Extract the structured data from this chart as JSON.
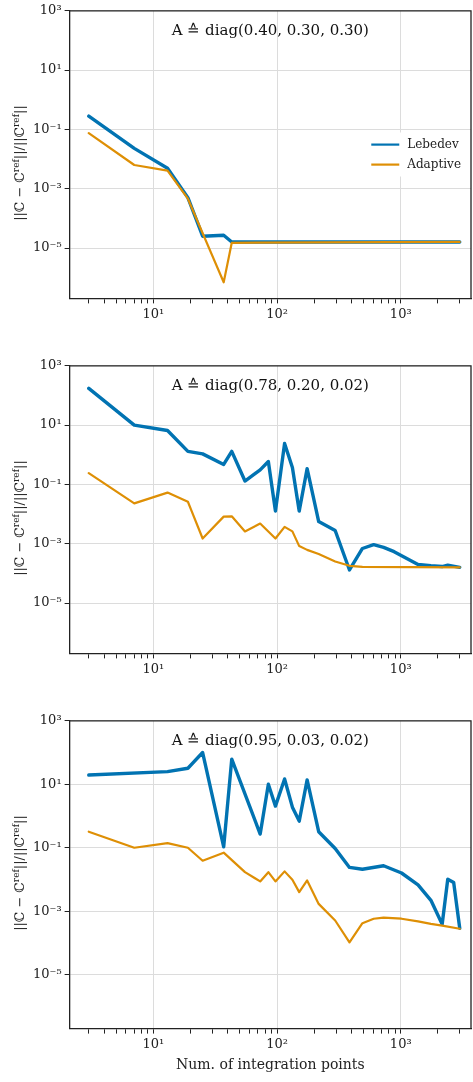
{
  "chart_data": [
    {
      "type": "line",
      "title": "A ≙ diag(0.40, 0.30, 0.30)",
      "ylabel": "||ℂ − ℂ$^{ref}$||/||ℂ$^{ref}$||",
      "log": "xy",
      "grid": true,
      "legend": "right",
      "xlim": [
        2.1,
        3700
      ],
      "ylim": [
        2e-07,
        1000
      ],
      "xticks": [
        {
          "value": 3,
          "label": null
        },
        {
          "value": 4,
          "label": null
        },
        {
          "value": 5,
          "label": null
        },
        {
          "value": 6,
          "label": null
        },
        {
          "value": 7,
          "label": null
        },
        {
          "value": 8,
          "label": null
        },
        {
          "value": 9,
          "label": null
        },
        {
          "value": 10,
          "label": "10¹"
        },
        {
          "value": 20,
          "label": null
        },
        {
          "value": 30,
          "label": null
        },
        {
          "value": 40,
          "label": null
        },
        {
          "value": 50,
          "label": null
        },
        {
          "value": 60,
          "label": null
        },
        {
          "value": 70,
          "label": null
        },
        {
          "value": 80,
          "label": null
        },
        {
          "value": 90,
          "label": null
        },
        {
          "value": 100,
          "label": "10²"
        },
        {
          "value": 200,
          "label": null
        },
        {
          "value": 300,
          "label": null
        },
        {
          "value": 400,
          "label": null
        },
        {
          "value": 500,
          "label": null
        },
        {
          "value": 600,
          "label": null
        },
        {
          "value": 700,
          "label": null
        },
        {
          "value": 800,
          "label": null
        },
        {
          "value": 900,
          "label": null
        },
        {
          "value": 1000,
          "label": "10³"
        },
        {
          "value": 2000,
          "label": null
        },
        {
          "value": 3000,
          "label": null
        }
      ],
      "yticks": [
        {
          "value": 1e-05,
          "label": "10⁻⁵"
        },
        {
          "value": 0.001,
          "label": "10⁻³"
        },
        {
          "value": 0.1,
          "label": "10⁻¹"
        },
        {
          "value": 10,
          "label": "10¹"
        },
        {
          "value": 1000,
          "label": "10³"
        }
      ],
      "series": [
        {
          "name": "Lebedev",
          "color": "#0173b2",
          "x": [
            3,
            7,
            13,
            19,
            25,
            37,
            43,
            3000
          ],
          "values": [
            0.28,
            0.023,
            0.0049,
            0.0005,
            2.5e-05,
            2.7e-05,
            1.6e-05,
            1.6e-05
          ]
        },
        {
          "name": "Adaptive",
          "color": "#de8f05",
          "x": [
            3,
            7,
            13,
            19,
            37,
            43,
            3000
          ],
          "values": [
            0.075,
            0.0063,
            0.0041,
            0.00046,
            7e-07,
            1.5e-05,
            1.6e-05
          ]
        }
      ]
    },
    {
      "type": "line",
      "title": "A ≙ diag(0.78, 0.20, 0.02)",
      "ylabel": "||ℂ − ℂ$^{ref}$||/||ℂ$^{ref}$||",
      "log": "xy",
      "grid": true,
      "xlim": [
        2.1,
        3700
      ],
      "ylim": [
        2e-07,
        1000
      ],
      "xticks": [
        {
          "value": 3,
          "label": null
        },
        {
          "value": 4,
          "label": null
        },
        {
          "value": 5,
          "label": null
        },
        {
          "value": 6,
          "label": null
        },
        {
          "value": 7,
          "label": null
        },
        {
          "value": 8,
          "label": null
        },
        {
          "value": 9,
          "label": null
        },
        {
          "value": 10,
          "label": "10¹"
        },
        {
          "value": 20,
          "label": null
        },
        {
          "value": 30,
          "label": null
        },
        {
          "value": 40,
          "label": null
        },
        {
          "value": 50,
          "label": null
        },
        {
          "value": 60,
          "label": null
        },
        {
          "value": 70,
          "label": null
        },
        {
          "value": 80,
          "label": null
        },
        {
          "value": 90,
          "label": null
        },
        {
          "value": 100,
          "label": "10²"
        },
        {
          "value": 200,
          "label": null
        },
        {
          "value": 300,
          "label": null
        },
        {
          "value": 400,
          "label": null
        },
        {
          "value": 500,
          "label": null
        },
        {
          "value": 600,
          "label": null
        },
        {
          "value": 700,
          "label": null
        },
        {
          "value": 800,
          "label": null
        },
        {
          "value": 900,
          "label": null
        },
        {
          "value": 1000,
          "label": "10³"
        },
        {
          "value": 2000,
          "label": null
        },
        {
          "value": 3000,
          "label": null
        }
      ],
      "yticks": [
        {
          "value": 1e-05,
          "label": "10⁻⁵"
        },
        {
          "value": 0.001,
          "label": "10⁻³"
        },
        {
          "value": 0.1,
          "label": "10⁻¹"
        },
        {
          "value": 10,
          "label": "10¹"
        },
        {
          "value": 1000,
          "label": "10³"
        }
      ],
      "series": [
        {
          "color": "#0173b2",
          "x": [
            3,
            7,
            13,
            19,
            25,
            37,
            43,
            55,
            73,
            85,
            97,
            115,
            133,
            151,
            175,
            217,
            295,
            385,
            490,
            604,
            727,
            884,
            1380,
            1754,
            2163,
            2400,
            3000
          ],
          "values": [
            174,
            10,
            6.6,
            1.3,
            1.07,
            0.47,
            1.3,
            0.13,
            0.31,
            0.59,
            0.0126,
            2.4,
            0.37,
            0.0126,
            0.34,
            0.0056,
            0.0028,
            0.00013,
            0.00069,
            0.00093,
            0.00075,
            0.00054,
            0.0002,
            0.00018,
            0.00017,
            0.00019,
            0.00016
          ]
        },
        {
          "color": "#de8f05",
          "x": [
            3,
            7,
            13,
            19,
            25,
            37,
            43,
            55,
            73,
            97,
            115,
            133,
            151,
            175,
            217,
            295,
            385,
            490,
            3000
          ],
          "values": [
            0.24,
            0.023,
            0.053,
            0.026,
            0.0015,
            0.0082,
            0.0084,
            0.0026,
            0.0048,
            0.0015,
            0.0037,
            0.0026,
            0.00083,
            0.00062,
            0.00045,
            0.00025,
            0.00018,
            0.000165,
            0.00016
          ]
        }
      ]
    },
    {
      "type": "line",
      "title": "A ≙ diag(0.95, 0.03, 0.02)",
      "xlabel": "Num. of integration points",
      "ylabel": "||ℂ − ℂ$^{ref}$||/||ℂ$^{ref}$||",
      "log": "xy",
      "grid": true,
      "xlim": [
        2.1,
        3700
      ],
      "ylim": [
        2e-07,
        1000
      ],
      "xticks": [
        {
          "value": 3,
          "label": null
        },
        {
          "value": 4,
          "label": null
        },
        {
          "value": 5,
          "label": null
        },
        {
          "value": 6,
          "label": null
        },
        {
          "value": 7,
          "label": null
        },
        {
          "value": 8,
          "label": null
        },
        {
          "value": 9,
          "label": null
        },
        {
          "value": 10,
          "label": "10¹"
        },
        {
          "value": 20,
          "label": null
        },
        {
          "value": 30,
          "label": null
        },
        {
          "value": 40,
          "label": null
        },
        {
          "value": 50,
          "label": null
        },
        {
          "value": 60,
          "label": null
        },
        {
          "value": 70,
          "label": null
        },
        {
          "value": 80,
          "label": null
        },
        {
          "value": 90,
          "label": null
        },
        {
          "value": 100,
          "label": "10²"
        },
        {
          "value": 200,
          "label": null
        },
        {
          "value": 300,
          "label": null
        },
        {
          "value": 400,
          "label": null
        },
        {
          "value": 500,
          "label": null
        },
        {
          "value": 600,
          "label": null
        },
        {
          "value": 700,
          "label": null
        },
        {
          "value": 800,
          "label": null
        },
        {
          "value": 900,
          "label": null
        },
        {
          "value": 1000,
          "label": "10³"
        },
        {
          "value": 2000,
          "label": null
        },
        {
          "value": 3000,
          "label": null
        }
      ],
      "yticks": [
        {
          "value": 1e-05,
          "label": "10⁻⁵"
        },
        {
          "value": 0.001,
          "label": "10⁻³"
        },
        {
          "value": 0.1,
          "label": "10⁻¹"
        },
        {
          "value": 10,
          "label": "10¹"
        },
        {
          "value": 1000,
          "label": "10³"
        }
      ],
      "series": [
        {
          "color": "#0173b2",
          "x": [
            3,
            13,
            19,
            25,
            37,
            43,
            73,
            85,
            97,
            115,
            133,
            151,
            175,
            217,
            295,
            385,
            490,
            727,
            1015,
            1380,
            1754,
            2163,
            2400,
            2680,
            3000
          ],
          "values": [
            19.5,
            25,
            32,
            100,
            0.107,
            62,
            0.27,
            10,
            2.05,
            14.7,
            1.9,
            0.69,
            13.7,
            0.32,
            0.095,
            0.024,
            0.021,
            0.027,
            0.016,
            0.0068,
            0.0022,
            0.00039,
            0.0102,
            0.008,
            0.00029
          ]
        },
        {
          "color": "#de8f05",
          "x": [
            3,
            7,
            13,
            19,
            25,
            37,
            55,
            73,
            85,
            97,
            115,
            133,
            151,
            175,
            217,
            295,
            385,
            490,
            604,
            727,
            1015,
            1380,
            1754,
            2163,
            3000
          ],
          "values": [
            0.32,
            0.1,
            0.14,
            0.1,
            0.039,
            0.07,
            0.017,
            0.0087,
            0.017,
            0.0087,
            0.018,
            0.0098,
            0.004,
            0.0093,
            0.0017,
            0.00051,
            0.000105,
            0.00042,
            0.00058,
            0.00063,
            0.00058,
            0.00048,
            0.0004,
            0.00035,
            0.00028
          ]
        }
      ]
    }
  ]
}
